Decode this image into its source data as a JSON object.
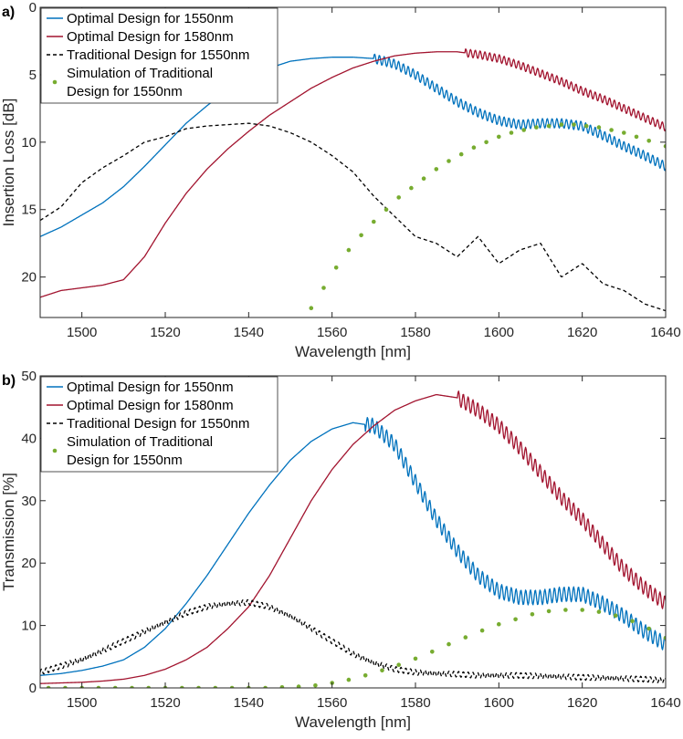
{
  "colors": {
    "opt1550": "#0072BD",
    "opt1580": "#A2142F",
    "trad": "#000000",
    "sim": "#77AC30"
  },
  "chart_data": [
    {
      "type": "line",
      "panel_label": "a)",
      "title": "",
      "xlabel": "Wavelength [nm]",
      "ylabel": "Insertion Loss [dB]",
      "xlim": [
        1490,
        1640
      ],
      "ylim": [
        0,
        23
      ],
      "y_reversed": true,
      "xticks": [
        1500,
        1520,
        1540,
        1560,
        1580,
        1600,
        1620,
        1640
      ],
      "yticks": [
        0,
        5,
        10,
        15,
        20
      ],
      "legend_position": "top-left",
      "series": [
        {
          "name": "Optimal Design for 1550nm",
          "style": "solid",
          "color_key": "opt1550",
          "ripple_amp": 0.35,
          "ripple_from": 1570,
          "x": [
            1490,
            1495,
            1500,
            1505,
            1510,
            1515,
            1520,
            1525,
            1530,
            1535,
            1540,
            1545,
            1550,
            1555,
            1560,
            1565,
            1570,
            1575,
            1580,
            1585,
            1590,
            1595,
            1600,
            1605,
            1610,
            1615,
            1620,
            1625,
            1630,
            1635,
            1640
          ],
          "y": [
            17.0,
            16.3,
            15.4,
            14.5,
            13.3,
            11.8,
            10.2,
            8.6,
            7.3,
            6.1,
            5.2,
            4.5,
            4.0,
            3.8,
            3.7,
            3.7,
            3.8,
            4.2,
            5.0,
            6.0,
            7.0,
            7.8,
            8.4,
            8.7,
            8.6,
            8.6,
            8.8,
            9.5,
            10.3,
            11.0,
            11.8
          ]
        },
        {
          "name": "Optimal Design for 1580nm",
          "style": "solid",
          "color_key": "opt1580",
          "ripple_amp": 0.3,
          "ripple_from": 1592,
          "x": [
            1490,
            1495,
            1500,
            1505,
            1510,
            1515,
            1520,
            1525,
            1530,
            1535,
            1540,
            1545,
            1550,
            1555,
            1560,
            1565,
            1570,
            1575,
            1580,
            1585,
            1590,
            1595,
            1600,
            1605,
            1610,
            1615,
            1620,
            1625,
            1630,
            1635,
            1640
          ],
          "y": [
            21.5,
            21.0,
            20.8,
            20.6,
            20.2,
            18.5,
            16.0,
            13.8,
            12.0,
            10.5,
            9.2,
            8.0,
            7.0,
            6.0,
            5.2,
            4.5,
            4.0,
            3.6,
            3.4,
            3.3,
            3.3,
            3.5,
            3.8,
            4.3,
            4.9,
            5.5,
            6.2,
            6.8,
            7.5,
            8.2,
            8.9
          ]
        },
        {
          "name": "Traditional Design for 1550nm",
          "style": "dashed",
          "color_key": "trad",
          "ripple_amp": 0,
          "x": [
            1490,
            1495,
            1500,
            1505,
            1510,
            1515,
            1520,
            1525,
            1530,
            1535,
            1540,
            1545,
            1550,
            1555,
            1560,
            1565,
            1570,
            1575,
            1580,
            1585,
            1590,
            1595,
            1600,
            1605,
            1610,
            1615,
            1620,
            1625,
            1630,
            1635,
            1640
          ],
          "y": [
            15.8,
            14.8,
            13.0,
            11.9,
            11.0,
            10.0,
            9.6,
            9.0,
            8.8,
            8.7,
            8.6,
            8.8,
            9.3,
            10.0,
            11.0,
            12.2,
            14.0,
            15.5,
            17.0,
            17.5,
            18.5,
            17.0,
            19.0,
            18.0,
            17.5,
            20.0,
            19.0,
            20.5,
            21.0,
            22.0,
            22.5
          ]
        },
        {
          "name": "Simulation of Traditional Design for 1550nm",
          "style": "dots",
          "color_key": "sim",
          "x": [
            1555,
            1558,
            1561,
            1564,
            1567,
            1570,
            1573,
            1576,
            1579,
            1582,
            1585,
            1588,
            1591,
            1594,
            1597,
            1600,
            1603,
            1606,
            1609,
            1612,
            1615,
            1618,
            1621,
            1624,
            1627,
            1630,
            1633,
            1636,
            1640
          ],
          "y": [
            22.3,
            20.8,
            19.3,
            18.0,
            16.9,
            15.9,
            15.0,
            14.1,
            13.4,
            12.7,
            12.0,
            11.4,
            10.9,
            10.4,
            10.0,
            9.6,
            9.3,
            9.1,
            8.9,
            8.8,
            8.7,
            8.7,
            8.8,
            8.9,
            9.1,
            9.3,
            9.6,
            9.9,
            10.3
          ]
        }
      ]
    },
    {
      "type": "line",
      "panel_label": "b)",
      "title": "",
      "xlabel": "Wavelength [nm]",
      "ylabel": "Transmission [%]",
      "xlim": [
        1490,
        1640
      ],
      "ylim": [
        0,
        50
      ],
      "y_reversed": false,
      "xticks": [
        1500,
        1520,
        1540,
        1560,
        1580,
        1600,
        1620,
        1640
      ],
      "yticks": [
        0,
        10,
        20,
        30,
        40,
        50
      ],
      "legend_position": "top-left",
      "series": [
        {
          "name": "Optimal Design for 1550nm",
          "style": "solid",
          "color_key": "opt1550",
          "ripple_amp": 1.2,
          "ripple_from": 1568,
          "x": [
            1490,
            1495,
            1500,
            1505,
            1510,
            1515,
            1520,
            1525,
            1530,
            1535,
            1540,
            1545,
            1550,
            1555,
            1560,
            1565,
            1570,
            1575,
            1580,
            1585,
            1590,
            1595,
            1600,
            1605,
            1610,
            1615,
            1620,
            1625,
            1630,
            1635,
            1640
          ],
          "y": [
            2.0,
            2.3,
            2.8,
            3.5,
            4.5,
            6.5,
            9.5,
            13.5,
            18.0,
            23.0,
            28.0,
            32.5,
            36.5,
            39.5,
            41.5,
            42.5,
            42.0,
            39.0,
            33.0,
            27.0,
            22.0,
            18.0,
            15.5,
            14.5,
            14.5,
            15.0,
            15.0,
            13.5,
            11.5,
            9.0,
            7.0
          ]
        },
        {
          "name": "Optimal Design for 1580nm",
          "style": "solid",
          "color_key": "opt1580",
          "ripple_amp": 1.2,
          "ripple_from": 1590,
          "x": [
            1490,
            1495,
            1500,
            1505,
            1510,
            1515,
            1520,
            1525,
            1530,
            1535,
            1540,
            1545,
            1550,
            1555,
            1560,
            1565,
            1570,
            1575,
            1580,
            1585,
            1590,
            1595,
            1600,
            1605,
            1610,
            1615,
            1620,
            1625,
            1630,
            1635,
            1640
          ],
          "y": [
            0.7,
            0.8,
            0.9,
            1.1,
            1.4,
            2.0,
            3.0,
            4.5,
            6.5,
            9.5,
            13.0,
            18.0,
            24.0,
            30.0,
            35.0,
            39.0,
            42.0,
            44.5,
            46.0,
            47.0,
            46.5,
            44.5,
            42.0,
            38.5,
            34.5,
            30.5,
            27.0,
            23.0,
            19.0,
            16.0,
            13.5
          ]
        },
        {
          "name": "Traditional Design for 1550nm",
          "style": "dashed",
          "color_key": "trad",
          "ripple_amp": 0.45,
          "ripple_from": 1490,
          "x": [
            1490,
            1495,
            1500,
            1505,
            1510,
            1515,
            1520,
            1525,
            1530,
            1535,
            1540,
            1545,
            1550,
            1555,
            1560,
            1565,
            1570,
            1575,
            1580,
            1585,
            1590,
            1595,
            1600,
            1605,
            1610,
            1615,
            1620,
            1625,
            1630,
            1635,
            1640
          ],
          "y": [
            2.5,
            3.5,
            4.5,
            6.0,
            7.5,
            9.0,
            10.5,
            12.0,
            13.0,
            13.5,
            13.7,
            13.0,
            11.5,
            9.5,
            7.5,
            5.5,
            4.0,
            3.0,
            2.5,
            2.3,
            2.2,
            2.0,
            2.0,
            2.0,
            1.9,
            1.8,
            1.7,
            1.6,
            1.5,
            1.4,
            1.2
          ]
        },
        {
          "name": "Simulation of Traditional Design for 1550nm",
          "style": "dots",
          "color_key": "sim",
          "x": [
            1492,
            1496,
            1500,
            1504,
            1508,
            1512,
            1516,
            1520,
            1524,
            1528,
            1532,
            1536,
            1540,
            1544,
            1548,
            1552,
            1556,
            1560,
            1564,
            1568,
            1572,
            1576,
            1580,
            1584,
            1588,
            1592,
            1596,
            1600,
            1604,
            1608,
            1612,
            1616,
            1620,
            1624,
            1628,
            1632,
            1636,
            1640
          ],
          "y": [
            0,
            0,
            0,
            0,
            0,
            0,
            0,
            0,
            0,
            0,
            0,
            0,
            0,
            0,
            0.1,
            0.2,
            0.4,
            0.8,
            1.3,
            2.0,
            2.8,
            3.7,
            4.7,
            5.8,
            7.0,
            8.1,
            9.2,
            10.2,
            11.0,
            11.8,
            12.3,
            12.5,
            12.5,
            12.2,
            11.6,
            10.7,
            9.5,
            8.0
          ]
        }
      ]
    }
  ]
}
